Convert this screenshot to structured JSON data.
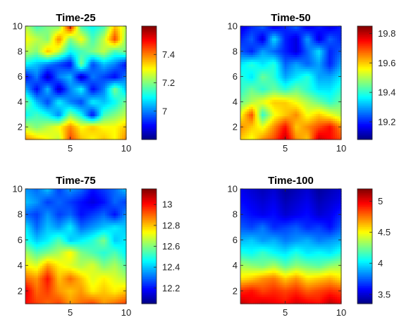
{
  "chart_data": [
    {
      "type": "heatmap",
      "title": "Time-25",
      "x_ticks": [
        "5",
        "10"
      ],
      "y_ticks": [
        "2",
        "4",
        "6",
        "8",
        "10"
      ],
      "xlim": [
        1,
        10
      ],
      "ylim": [
        1,
        10
      ],
      "colorbar": {
        "range": [
          6.8,
          7.6
        ],
        "ticks": [
          "7",
          "7.2",
          "7.4"
        ]
      },
      "z_rows_bottom_to_top": [
        [
          7.4,
          7.35,
          7.3,
          7.25,
          7.45,
          7.35,
          7.3,
          7.35,
          7.3,
          7.4
        ],
        [
          7.25,
          7.2,
          7.25,
          7.3,
          7.4,
          7.3,
          7.35,
          7.3,
          7.3,
          7.35
        ],
        [
          7.1,
          7.15,
          7.1,
          7.0,
          7.2,
          7.1,
          6.9,
          7.15,
          7.2,
          7.25
        ],
        [
          7.2,
          7.05,
          6.95,
          7.1,
          7.0,
          6.95,
          7.1,
          7.05,
          7.1,
          7.2
        ],
        [
          7.05,
          6.9,
          7.05,
          6.85,
          7.0,
          7.1,
          6.9,
          7.0,
          7.2,
          7.05
        ],
        [
          6.9,
          7.0,
          6.85,
          7.0,
          7.05,
          6.85,
          7.0,
          6.95,
          6.9,
          7.0
        ],
        [
          7.1,
          7.05,
          7.0,
          6.95,
          6.9,
          7.2,
          6.95,
          7.05,
          7.0,
          6.9
        ],
        [
          7.25,
          7.2,
          7.35,
          7.25,
          7.1,
          7.15,
          7.2,
          7.25,
          7.15,
          7.2
        ],
        [
          7.3,
          7.25,
          7.2,
          7.4,
          7.2,
          7.3,
          7.15,
          7.25,
          7.45,
          7.2
        ],
        [
          7.25,
          7.15,
          7.2,
          7.2,
          7.5,
          7.15,
          7.1,
          7.15,
          7.35,
          7.25
        ]
      ]
    },
    {
      "type": "heatmap",
      "title": "Time-50",
      "x_ticks": [
        "5",
        "10"
      ],
      "y_ticks": [
        "2",
        "4",
        "6",
        "8",
        "10"
      ],
      "xlim": [
        1,
        10
      ],
      "ylim": [
        1,
        10
      ],
      "colorbar": {
        "range": [
          19.08,
          19.85
        ],
        "ticks": [
          "19.2",
          "19.4",
          "19.6",
          "19.8"
        ]
      },
      "z_rows_bottom_to_top": [
        [
          19.6,
          19.55,
          19.65,
          19.7,
          19.8,
          19.65,
          19.6,
          19.8,
          19.75,
          19.7
        ],
        [
          19.65,
          19.6,
          19.55,
          19.65,
          19.75,
          19.6,
          19.65,
          19.7,
          19.75,
          19.65
        ],
        [
          19.55,
          19.7,
          19.4,
          19.55,
          19.6,
          19.65,
          19.55,
          19.6,
          19.55,
          19.5
        ],
        [
          19.45,
          19.5,
          19.55,
          19.6,
          19.6,
          19.55,
          19.5,
          19.45,
          19.4,
          19.45
        ],
        [
          19.4,
          19.45,
          19.4,
          19.45,
          19.4,
          19.45,
          19.4,
          19.35,
          19.35,
          19.4
        ],
        [
          19.4,
          19.35,
          19.45,
          19.4,
          19.3,
          19.35,
          19.4,
          19.3,
          19.3,
          19.35
        ],
        [
          19.35,
          19.4,
          19.35,
          19.4,
          19.25,
          19.3,
          19.25,
          19.3,
          19.2,
          19.3
        ],
        [
          19.25,
          19.2,
          19.3,
          19.25,
          19.2,
          19.15,
          19.25,
          19.35,
          19.2,
          19.25
        ],
        [
          19.2,
          19.25,
          19.15,
          19.35,
          19.2,
          19.15,
          19.3,
          19.15,
          19.25,
          19.2
        ],
        [
          19.15,
          19.2,
          19.25,
          19.15,
          19.2,
          19.25,
          19.15,
          19.2,
          19.15,
          19.2
        ]
      ]
    },
    {
      "type": "heatmap",
      "title": "Time-75",
      "x_ticks": [
        "5",
        "10"
      ],
      "y_ticks": [
        "2",
        "4",
        "6",
        "8",
        "10"
      ],
      "xlim": [
        1,
        10
      ],
      "ylim": [
        1,
        10
      ],
      "colorbar": {
        "range": [
          12.05,
          13.15
        ],
        "ticks": [
          "12.2",
          "12.4",
          "12.6",
          "12.8",
          "13"
        ]
      },
      "z_rows_bottom_to_top": [
        [
          13.0,
          12.95,
          12.9,
          12.95,
          12.85,
          12.9,
          12.95,
          12.85,
          12.9,
          12.95
        ],
        [
          13.05,
          12.9,
          12.95,
          12.85,
          12.8,
          12.85,
          12.75,
          12.8,
          12.75,
          12.8
        ],
        [
          12.9,
          12.85,
          13.0,
          12.8,
          12.9,
          12.8,
          12.7,
          12.75,
          12.7,
          12.65
        ],
        [
          12.75,
          12.7,
          12.85,
          12.75,
          12.7,
          12.65,
          12.7,
          12.6,
          12.65,
          12.55
        ],
        [
          12.65,
          12.55,
          12.6,
          12.65,
          12.75,
          12.6,
          12.55,
          12.5,
          12.55,
          12.45
        ],
        [
          12.5,
          12.4,
          12.45,
          12.55,
          12.4,
          12.45,
          12.5,
          12.6,
          12.4,
          12.45
        ],
        [
          12.45,
          12.3,
          12.4,
          12.35,
          12.45,
          12.3,
          12.35,
          12.4,
          12.45,
          12.4
        ],
        [
          12.3,
          12.25,
          12.35,
          12.25,
          12.3,
          12.2,
          12.25,
          12.3,
          12.2,
          12.35
        ],
        [
          12.4,
          12.35,
          12.25,
          12.3,
          12.25,
          12.2,
          12.15,
          12.2,
          12.3,
          12.25
        ],
        [
          12.35,
          12.3,
          12.4,
          12.25,
          12.35,
          12.3,
          12.2,
          12.25,
          12.3,
          12.4
        ]
      ]
    },
    {
      "type": "heatmap",
      "title": "Time-100",
      "x_ticks": [
        "5",
        "10"
      ],
      "y_ticks": [
        "2",
        "4",
        "6",
        "8",
        "10"
      ],
      "xlim": [
        1,
        10
      ],
      "ylim": [
        1,
        10
      ],
      "colorbar": {
        "range": [
          3.35,
          5.2
        ],
        "ticks": [
          "3.5",
          "4",
          "4.5",
          "5"
        ]
      },
      "z_rows_bottom_to_top": [
        [
          5.1,
          5.0,
          5.05,
          5.0,
          4.95,
          5.05,
          5.0,
          4.95,
          5.1,
          5.0
        ],
        [
          4.9,
          4.95,
          4.85,
          4.9,
          4.85,
          4.9,
          4.8,
          4.85,
          4.9,
          4.85
        ],
        [
          4.55,
          4.6,
          4.7,
          4.75,
          4.6,
          4.7,
          4.55,
          4.6,
          4.65,
          4.55
        ],
        [
          4.35,
          4.3,
          4.25,
          4.35,
          4.2,
          4.3,
          4.25,
          4.2,
          4.3,
          4.35
        ],
        [
          4.1,
          4.05,
          4.15,
          4.05,
          4.0,
          4.1,
          4.0,
          4.05,
          4.0,
          4.1
        ],
        [
          3.9,
          3.95,
          3.85,
          3.9,
          3.8,
          3.85,
          3.9,
          3.8,
          3.85,
          3.9
        ],
        [
          3.75,
          3.7,
          3.8,
          3.65,
          3.7,
          3.75,
          3.65,
          3.7,
          3.6,
          3.75
        ],
        [
          3.65,
          3.6,
          3.55,
          3.6,
          3.5,
          3.55,
          3.6,
          3.5,
          3.55,
          3.65
        ],
        [
          3.6,
          3.55,
          3.5,
          3.55,
          3.45,
          3.5,
          3.55,
          3.45,
          3.5,
          3.55
        ],
        [
          3.55,
          3.5,
          3.45,
          3.5,
          3.4,
          3.45,
          3.5,
          3.4,
          3.45,
          3.5
        ]
      ]
    }
  ]
}
